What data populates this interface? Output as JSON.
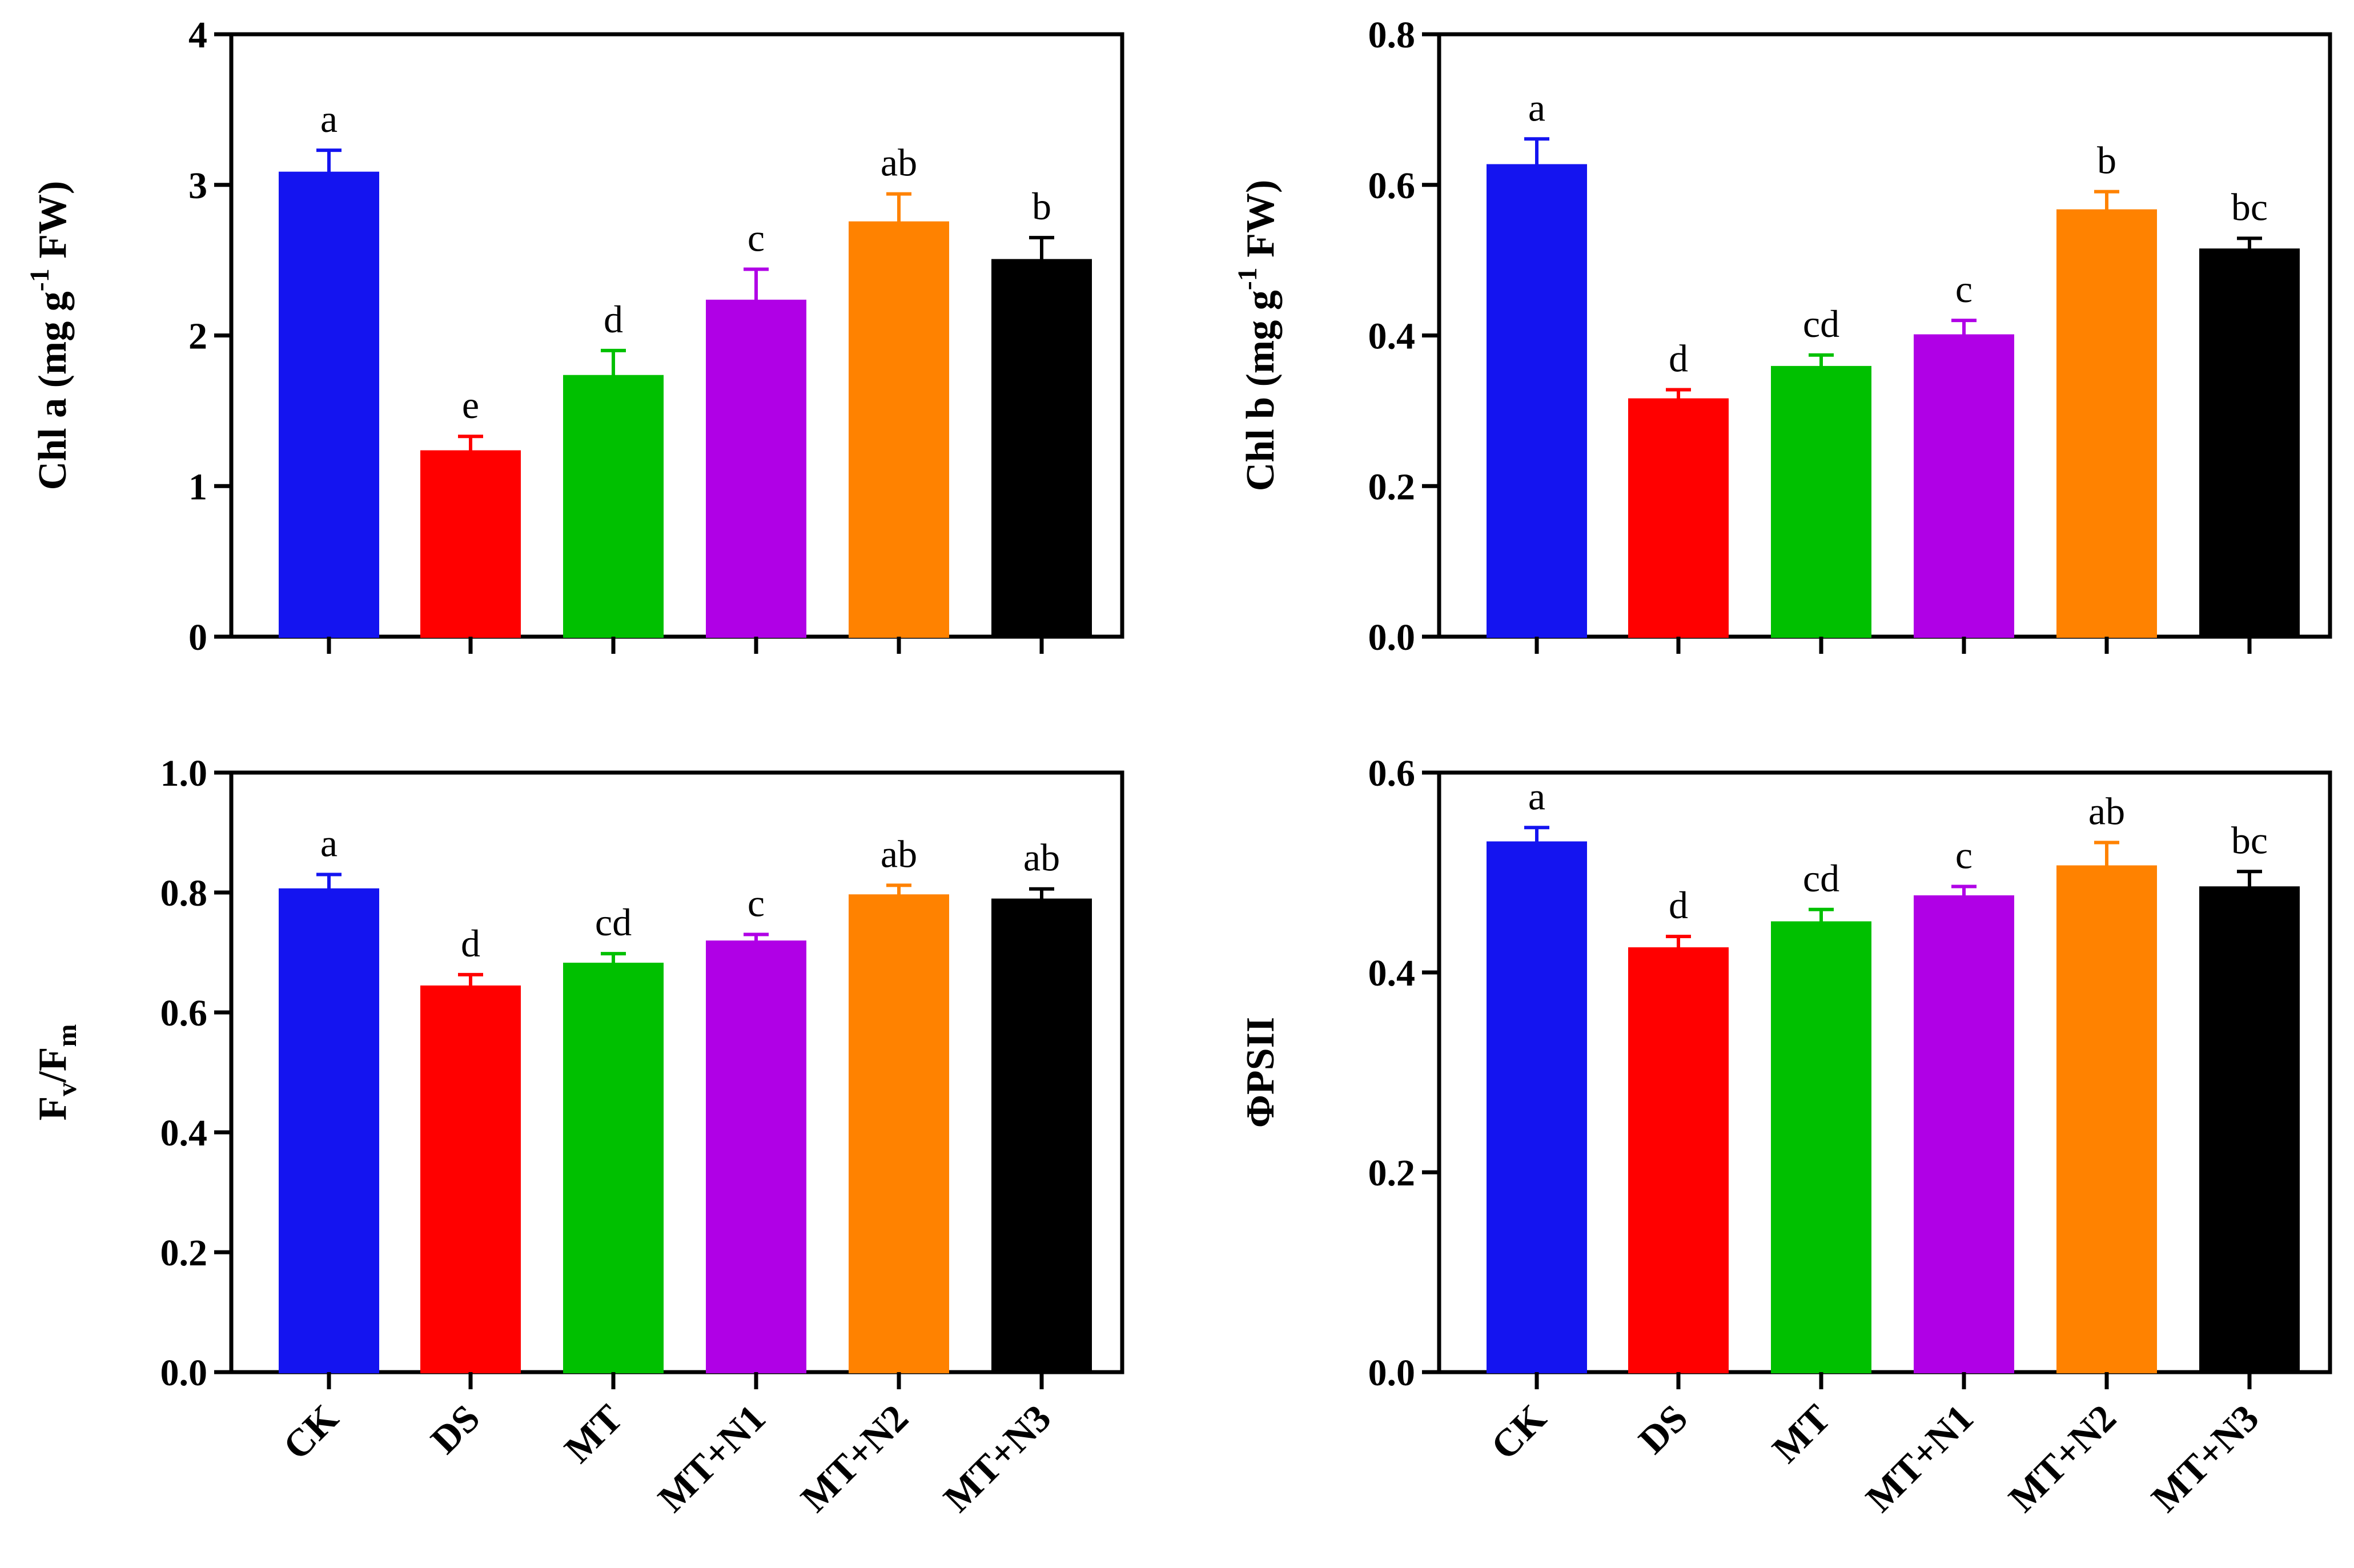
{
  "chart_data": [
    {
      "type": "bar",
      "title": "",
      "ylabel": {
        "main": "Chl a (mg g",
        "sup": "-1",
        "tail": " FW)"
      },
      "xlabel": "",
      "ylim": [
        0,
        4
      ],
      "yticks": [
        "0",
        "1",
        "2",
        "3",
        "4"
      ],
      "categories": [
        "CK",
        "DS",
        "MT",
        "MT+N1",
        "MT+N2",
        "MT+N3"
      ],
      "values": [
        3.08,
        1.23,
        1.73,
        2.23,
        2.75,
        2.5
      ],
      "errors": [
        0.15,
        0.1,
        0.17,
        0.21,
        0.19,
        0.15
      ],
      "letters": [
        "a",
        "e",
        "d",
        "c",
        "ab",
        "b"
      ],
      "show_categories": false
    },
    {
      "type": "bar",
      "title": "",
      "ylabel": {
        "main": "Chl b (mg g",
        "sup": "-1",
        "tail": " FW)"
      },
      "xlabel": "",
      "ylim": [
        0,
        0.8
      ],
      "yticks": [
        "0.0",
        "0.2",
        "0.4",
        "0.6",
        "0.8"
      ],
      "categories": [
        "CK",
        "DS",
        "MT",
        "MT+N1",
        "MT+N2",
        "MT+N3"
      ],
      "values": [
        0.626,
        0.315,
        0.358,
        0.4,
        0.566,
        0.514
      ],
      "errors": [
        0.035,
        0.013,
        0.016,
        0.02,
        0.025,
        0.015
      ],
      "letters": [
        "a",
        "d",
        "cd",
        "c",
        "b",
        "bc"
      ],
      "show_categories": false
    },
    {
      "type": "bar",
      "title": "",
      "ylabel": {
        "main": "F",
        "sub1": "v",
        "mid": "/F",
        "sub2": "m"
      },
      "xlabel": "",
      "ylim": [
        0,
        1.0
      ],
      "yticks": [
        "0.0",
        "0.2",
        "0.4",
        "0.6",
        "0.8",
        "1.0"
      ],
      "categories": [
        "CK",
        "DS",
        "MT",
        "MT+N1",
        "MT+N2",
        "MT+N3"
      ],
      "values": [
        0.805,
        0.643,
        0.681,
        0.718,
        0.795,
        0.788
      ],
      "errors": [
        0.025,
        0.02,
        0.017,
        0.012,
        0.017,
        0.018
      ],
      "letters": [
        "a",
        "d",
        "cd",
        "c",
        "ab",
        "ab"
      ],
      "show_categories": true
    },
    {
      "type": "bar",
      "title": "",
      "ylabel": {
        "main": "ΦPSII"
      },
      "xlabel": "",
      "ylim": [
        0,
        0.6
      ],
      "yticks": [
        "0.0",
        "0.2",
        "0.4",
        "0.6"
      ],
      "categories": [
        "CK",
        "DS",
        "MT",
        "MT+N1",
        "MT+N2",
        "MT+N3"
      ],
      "values": [
        0.53,
        0.424,
        0.45,
        0.476,
        0.506,
        0.485
      ],
      "errors": [
        0.015,
        0.012,
        0.013,
        0.01,
        0.024,
        0.016
      ],
      "letters": [
        "a",
        "d",
        "cd",
        "c",
        "ab",
        "bc"
      ],
      "show_categories": true
    }
  ],
  "colors": [
    "#1414f0",
    "#ff0000",
    "#00c000",
    "#b000e6",
    "#ff8200",
    "#000000"
  ]
}
